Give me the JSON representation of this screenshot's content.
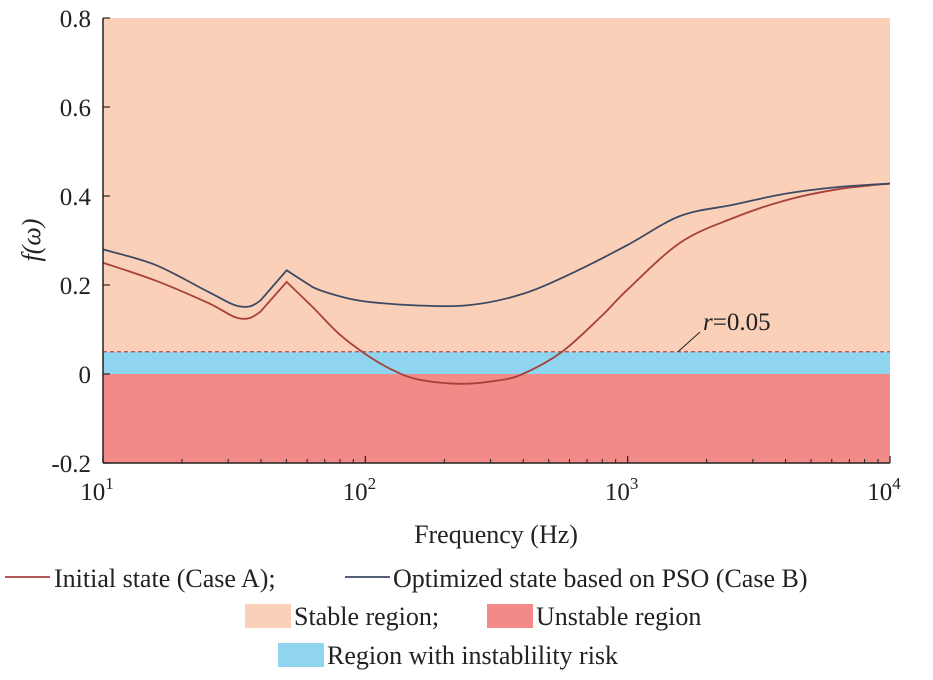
{
  "chart_data": {
    "type": "line",
    "title": "",
    "xlabel": "Frequency (Hz)",
    "ylabel": "f(ω)",
    "ylabel_parts": {
      "f": "f",
      "rest": "(ω)"
    },
    "xscale": "log",
    "xlim": [
      10,
      10000
    ],
    "ylim": [
      -0.2,
      0.8
    ],
    "yticks": [
      -0.2,
      0,
      0.2,
      0.4,
      0.6,
      0.8
    ],
    "ytick_labels": [
      "-0.2",
      "0",
      "0.2",
      "0.4",
      "0.6",
      "0.8"
    ],
    "xticks": [
      10,
      100,
      1000,
      10000
    ],
    "xtick_labels": [
      {
        "base": "10",
        "exp": "1"
      },
      {
        "base": "10",
        "exp": "2"
      },
      {
        "base": "10",
        "exp": "3"
      },
      {
        "base": "10",
        "exp": "4"
      }
    ],
    "regions": [
      {
        "name": "Stable region",
        "from": 0.05,
        "to": 0.8,
        "color": "#fbd0b9"
      },
      {
        "name": "Region with instablility risk",
        "from": 0,
        "to": 0.05,
        "color": "#8fd5f0"
      },
      {
        "name": "Unstable region",
        "from": -0.2,
        "to": 0,
        "color": "#f28b87"
      }
    ],
    "threshold": {
      "value": 0.05,
      "label_r": "r",
      "label_rest": "=0.05",
      "color": "#b8454a"
    },
    "series": [
      {
        "name": "Initial state (Case A)",
        "color": "#a8403c",
        "log10x": [
          1,
          1.2,
          1.4,
          1.52,
          1.6,
          1.7,
          1.8,
          1.9,
          2.0,
          2.1,
          2.2,
          2.36,
          2.5,
          2.6,
          2.75,
          2.9,
          3.0,
          3.2,
          3.4,
          3.6,
          3.8,
          4.0
        ],
        "y": [
          0.25,
          0.21,
          0.16,
          0.125,
          0.14,
          0.207,
          0.15,
          0.09,
          0.045,
          0.01,
          -0.012,
          -0.022,
          -0.015,
          0.0,
          0.05,
          0.13,
          0.19,
          0.295,
          0.35,
          0.39,
          0.415,
          0.428
        ]
      },
      {
        "name": "Optimized state based on PSO (Case B)",
        "color": "#3d4a63",
        "log10x": [
          1,
          1.2,
          1.4,
          1.52,
          1.6,
          1.7,
          1.8,
          1.9,
          2.0,
          2.2,
          2.4,
          2.6,
          2.8,
          3.0,
          3.2,
          3.4,
          3.6,
          3.8,
          4.0
        ],
        "y": [
          0.28,
          0.245,
          0.185,
          0.152,
          0.165,
          0.233,
          0.195,
          0.175,
          0.163,
          0.154,
          0.155,
          0.18,
          0.23,
          0.29,
          0.355,
          0.38,
          0.405,
          0.42,
          0.428
        ]
      }
    ],
    "legend": {
      "placement": "bottom",
      "line1": [
        "Initial state (Case A);",
        "Optimized state based on PSO (Case B)"
      ],
      "line2": [
        "Stable region;",
        "Unstable region"
      ],
      "line3": [
        "Region with instablility risk"
      ]
    }
  }
}
